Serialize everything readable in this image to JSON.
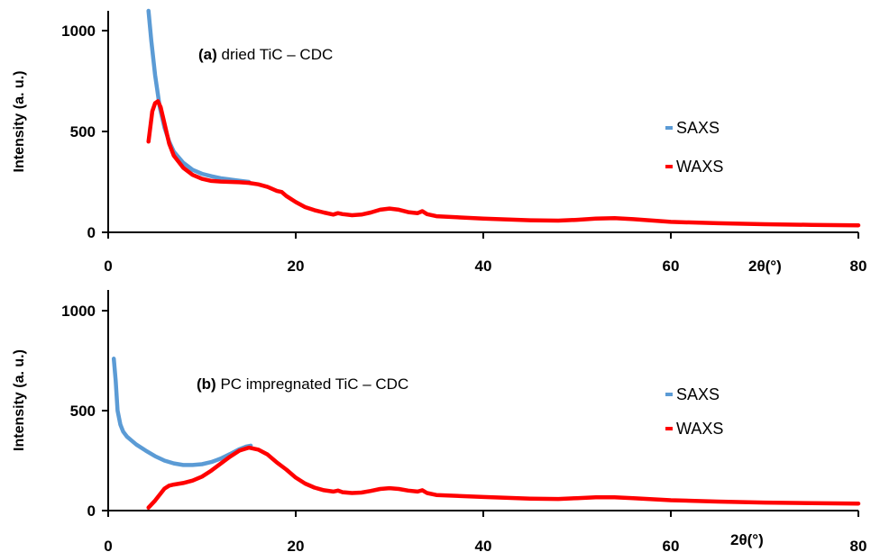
{
  "chart_data": [
    {
      "type": "line",
      "panel_title_tag": "(a)",
      "panel_title_text": "dried TiC – CDC",
      "ylabel": "Intensity (a. u.)",
      "xlabel": "2θ(°)",
      "xlim": [
        0,
        80
      ],
      "ylim": [
        0,
        1100
      ],
      "x_ticks": [
        0,
        20,
        40,
        60,
        80
      ],
      "y_ticks": [
        0,
        500,
        1000
      ],
      "legend_position": "right",
      "grid": false,
      "series": [
        {
          "name": "SAXS",
          "color": "#5B9BD5",
          "x": [
            4.3,
            4.6,
            5.0,
            5.5,
            6.0,
            6.5,
            7.0,
            8.0,
            9.0,
            10.0,
            11.0,
            12.0,
            13.0,
            14.0,
            15.0
          ],
          "y": [
            1100,
            950,
            780,
            620,
            520,
            450,
            400,
            345,
            310,
            290,
            278,
            268,
            262,
            256,
            250
          ]
        },
        {
          "name": "WAXS",
          "color": "#FF0000",
          "x": [
            4.3,
            4.7,
            5.0,
            5.3,
            5.6,
            6.0,
            6.5,
            7.0,
            8.0,
            9.0,
            10.0,
            11.0,
            12.0,
            13.0,
            14.0,
            15.0,
            16.0,
            17.0,
            18.0,
            18.5,
            19.0,
            20.0,
            21.0,
            22.0,
            23.0,
            24.0,
            24.5,
            25.0,
            26.0,
            27.0,
            28.0,
            29.0,
            30.0,
            31.0,
            32.0,
            33.0,
            33.5,
            34.0,
            35.0,
            40.0,
            45.0,
            48.0,
            50.0,
            52.0,
            54.0,
            56.0,
            60.0,
            65.0,
            70.0,
            75.0,
            80.0
          ],
          "y": [
            450,
            600,
            640,
            650,
            620,
            540,
            440,
            380,
            320,
            285,
            265,
            255,
            252,
            250,
            248,
            245,
            238,
            225,
            205,
            200,
            180,
            150,
            125,
            110,
            98,
            88,
            95,
            90,
            85,
            88,
            98,
            112,
            118,
            112,
            100,
            95,
            105,
            90,
            80,
            68,
            60,
            58,
            62,
            68,
            70,
            65,
            52,
            45,
            40,
            37,
            35
          ]
        }
      ]
    },
    {
      "type": "line",
      "panel_title_tag": "(b)",
      "panel_title_text": "PC impregnated TiC – CDC",
      "ylabel": "Intensity (a. u.)",
      "xlabel": "2θ(°)",
      "xlim": [
        0,
        80
      ],
      "ylim": [
        0,
        1100
      ],
      "x_ticks": [
        0,
        20,
        40,
        60,
        80
      ],
      "y_ticks": [
        0,
        500,
        1000
      ],
      "legend_position": "right",
      "grid": false,
      "series": [
        {
          "name": "SAXS",
          "color": "#5B9BD5",
          "x": [
            0.6,
            0.8,
            1.0,
            1.3,
            1.6,
            2.0,
            2.5,
            3.0,
            4.0,
            5.0,
            6.0,
            7.0,
            8.0,
            9.0,
            10.0,
            11.0,
            12.0,
            13.0,
            14.0,
            14.7,
            15.2
          ],
          "y": [
            760,
            650,
            500,
            430,
            395,
            370,
            350,
            330,
            300,
            272,
            250,
            236,
            228,
            228,
            232,
            243,
            260,
            283,
            307,
            320,
            325
          ]
        },
        {
          "name": "WAXS",
          "color": "#FF0000",
          "x": [
            4.3,
            5.0,
            6.0,
            6.5,
            7.0,
            8.0,
            9.0,
            10.0,
            11.0,
            12.0,
            13.0,
            14.0,
            15.0,
            16.0,
            17.0,
            18.0,
            19.0,
            20.0,
            21.0,
            22.0,
            23.0,
            24.0,
            24.5,
            25.0,
            26.0,
            27.0,
            28.0,
            29.0,
            30.0,
            31.0,
            32.0,
            33.0,
            33.5,
            34.0,
            35.0,
            40.0,
            45.0,
            48.0,
            50.0,
            52.0,
            54.0,
            56.0,
            60.0,
            65.0,
            70.0,
            75.0,
            80.0
          ],
          "y": [
            15,
            50,
            110,
            125,
            130,
            138,
            150,
            170,
            200,
            235,
            270,
            300,
            315,
            305,
            280,
            240,
            205,
            165,
            135,
            115,
            102,
            95,
            100,
            92,
            88,
            90,
            98,
            108,
            112,
            108,
            100,
            95,
            102,
            88,
            78,
            68,
            60,
            58,
            62,
            66,
            66,
            62,
            52,
            45,
            40,
            37,
            35
          ]
        }
      ]
    }
  ]
}
